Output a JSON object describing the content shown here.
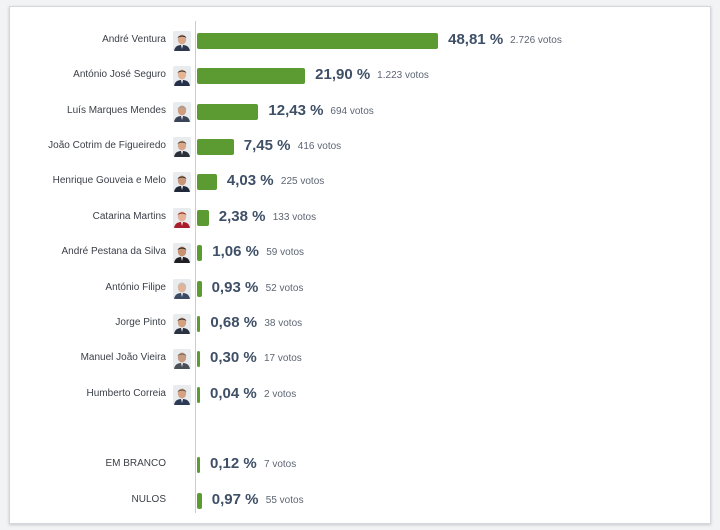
{
  "chart_data": {
    "type": "bar",
    "orientation": "horizontal",
    "categories": [
      "André Ventura",
      "António José Seguro",
      "Luís Marques Mendes",
      "João Cotrim de Figueiredo",
      "Henrique Gouveia e Melo",
      "Catarina Martins",
      "André Pestana da Silva",
      "António Filipe",
      "Jorge Pinto",
      "Manuel João Vieira",
      "Humberto Correia",
      "EM BRANCO",
      "NULOS"
    ],
    "values": [
      48.81,
      21.9,
      12.43,
      7.45,
      4.03,
      2.38,
      1.06,
      0.93,
      0.68,
      0.3,
      0.04,
      0.12,
      0.97
    ],
    "percent_labels": [
      "48,81 %",
      "21,90 %",
      "12,43 %",
      "7,45 %",
      "4,03 %",
      "2,38 %",
      "1,06 %",
      "0,93 %",
      "0,68 %",
      "0,30 %",
      "0,04 %",
      "0,12 %",
      "0,97 %"
    ],
    "votes": [
      2726,
      1223,
      694,
      416,
      225,
      133,
      59,
      52,
      38,
      17,
      2,
      7,
      55
    ],
    "vote_labels": [
      "2.726 votos",
      "1.223 votos",
      "694 votos",
      "416 votos",
      "225 votos",
      "133 votos",
      "59 votos",
      "52 votos",
      "38 votos",
      "17 votos",
      "2 votos",
      "7 votos",
      "55 votos"
    ],
    "has_photo": [
      true,
      true,
      true,
      true,
      true,
      true,
      true,
      true,
      true,
      true,
      true,
      false,
      false
    ],
    "bar_color": "#5b9b32",
    "grid": false,
    "legend": "none"
  }
}
